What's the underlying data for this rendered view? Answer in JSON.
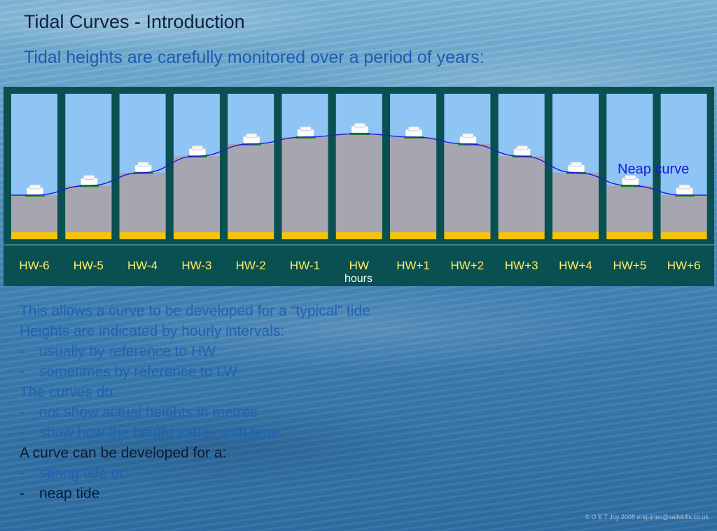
{
  "title": "Tidal Curves - Introduction",
  "subtitle": "Tidal heights are carefully monitored over a period of years:",
  "diagram": {
    "hours": [
      {
        "label": "HW-6",
        "level": 0.29
      },
      {
        "label": "HW-5",
        "level": 0.4
      },
      {
        "label": "HW-4",
        "level": 0.55
      },
      {
        "label": "HW-3",
        "level": 0.74
      },
      {
        "label": "HW-2",
        "level": 0.88
      },
      {
        "label": "HW-1",
        "level": 0.96
      },
      {
        "label": "HW",
        "level": 1.0
      },
      {
        "label": "HW+1",
        "level": 0.96
      },
      {
        "label": "HW+2",
        "level": 0.88
      },
      {
        "label": "HW+3",
        "level": 0.74
      },
      {
        "label": "HW+4",
        "level": 0.55
      },
      {
        "label": "HW+5",
        "level": 0.4
      },
      {
        "label": "HW+6",
        "level": 0.29
      }
    ],
    "axis_label": "hours",
    "curve_label": "Neap curve",
    "colors": {
      "frame": "#0a5050",
      "sky": "#8ec5f5",
      "water": "#a7a6b0",
      "seabed": "#f2c40a",
      "hour_label": "#ffee66",
      "curve": "#1a1ad6",
      "marker": "#1f8a1f"
    }
  },
  "notes": [
    {
      "dash": "",
      "text": "This allows a curve to be developed for a “typical” tide",
      "dark": false
    },
    {
      "dash": "",
      "text": "Heights are indicated by hourly intervals:",
      "dark": false
    },
    {
      "dash": "-",
      "text": "usually by reference to HW",
      "dark": false
    },
    {
      "dash": "-",
      "text": "sometimes by reference to LW",
      "dark": false
    },
    {
      "dash": "",
      "text": "The curves do:",
      "dark": false
    },
    {
      "dash": "-",
      "text": "not show actual heights in metres",
      "dark": false
    },
    {
      "dash": "-",
      "text": "show how the height varies with time",
      "dark": false
    },
    {
      "dash": "",
      "text": "A curve can be developed for a:",
      "dark": true
    },
    {
      "dash": "-",
      "text": "spring tide or",
      "dark": false
    },
    {
      "dash": "-",
      "text": "neap tide",
      "dark": true
    }
  ],
  "copyright": "© O E T Joy 2008 enquiries@sailskills.co.uk"
}
